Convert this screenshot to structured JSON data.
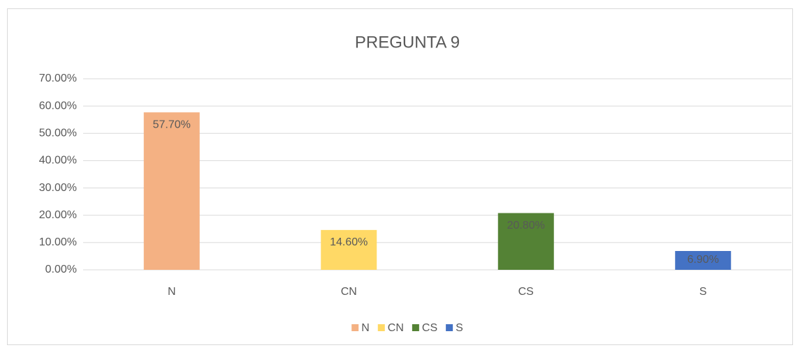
{
  "chart_data": {
    "type": "bar",
    "title": "PREGUNTA 9",
    "categories": [
      "N",
      "CN",
      "CS",
      "S"
    ],
    "values": [
      57.7,
      14.6,
      20.8,
      6.9
    ],
    "value_labels": [
      "57.70%",
      "14.60%",
      "20.80%",
      "6.90%"
    ],
    "colors": [
      "#f4b183",
      "#ffd966",
      "#548235",
      "#4472c4"
    ],
    "ylim": [
      0,
      70
    ],
    "yticks": [
      {
        "value": 0,
        "label": "0.00%"
      },
      {
        "value": 10,
        "label": "10.00%"
      },
      {
        "value": 20,
        "label": "20.00%"
      },
      {
        "value": 30,
        "label": "30.00%"
      },
      {
        "value": 40,
        "label": "40.00%"
      },
      {
        "value": 50,
        "label": "50.00%"
      },
      {
        "value": 60,
        "label": "60.00%"
      },
      {
        "value": 70,
        "label": "70.00%"
      }
    ],
    "grid": true,
    "legend": "bottom"
  }
}
